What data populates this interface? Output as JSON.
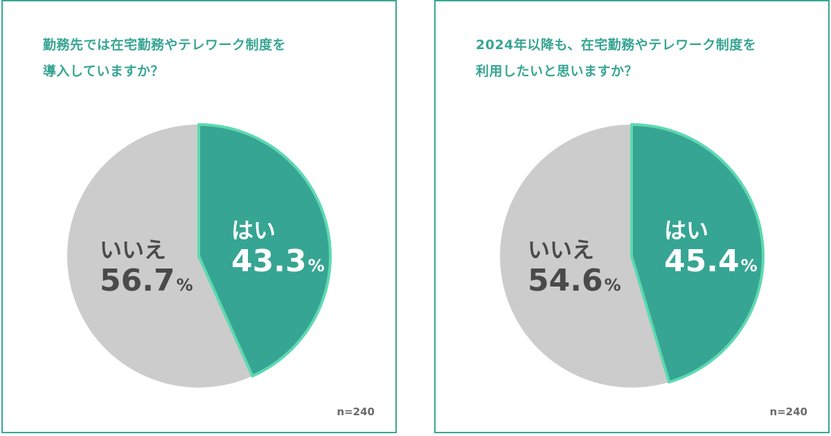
{
  "colors": {
    "accent": "#37a593",
    "border_highlight": "#5ed9b0",
    "grey": "#cccccc",
    "dark_text": "#4a4a4a"
  },
  "chart_data": [
    {
      "type": "pie",
      "title_lines": [
        "勤務先では在宅勤務やテレワーク制度を",
        "導入していますか？"
      ],
      "slices": [
        {
          "label": "はい",
          "value": 43.3,
          "display": "43.3",
          "color": "#37a593"
        },
        {
          "label": "いいえ",
          "value": 56.7,
          "display": "56.7",
          "color": "#cccccc"
        }
      ],
      "unit": "%",
      "n_label": "n=240"
    },
    {
      "type": "pie",
      "title_lines": [
        "2024年以降も、在宅勤務やテレワーク制度を",
        "利用したいと思いますか？"
      ],
      "slices": [
        {
          "label": "はい",
          "value": 45.4,
          "display": "45.4",
          "color": "#37a593"
        },
        {
          "label": "いいえ",
          "value": 54.6,
          "display": "54.6",
          "color": "#cccccc"
        }
      ],
      "unit": "%",
      "n_label": "n=240"
    }
  ]
}
